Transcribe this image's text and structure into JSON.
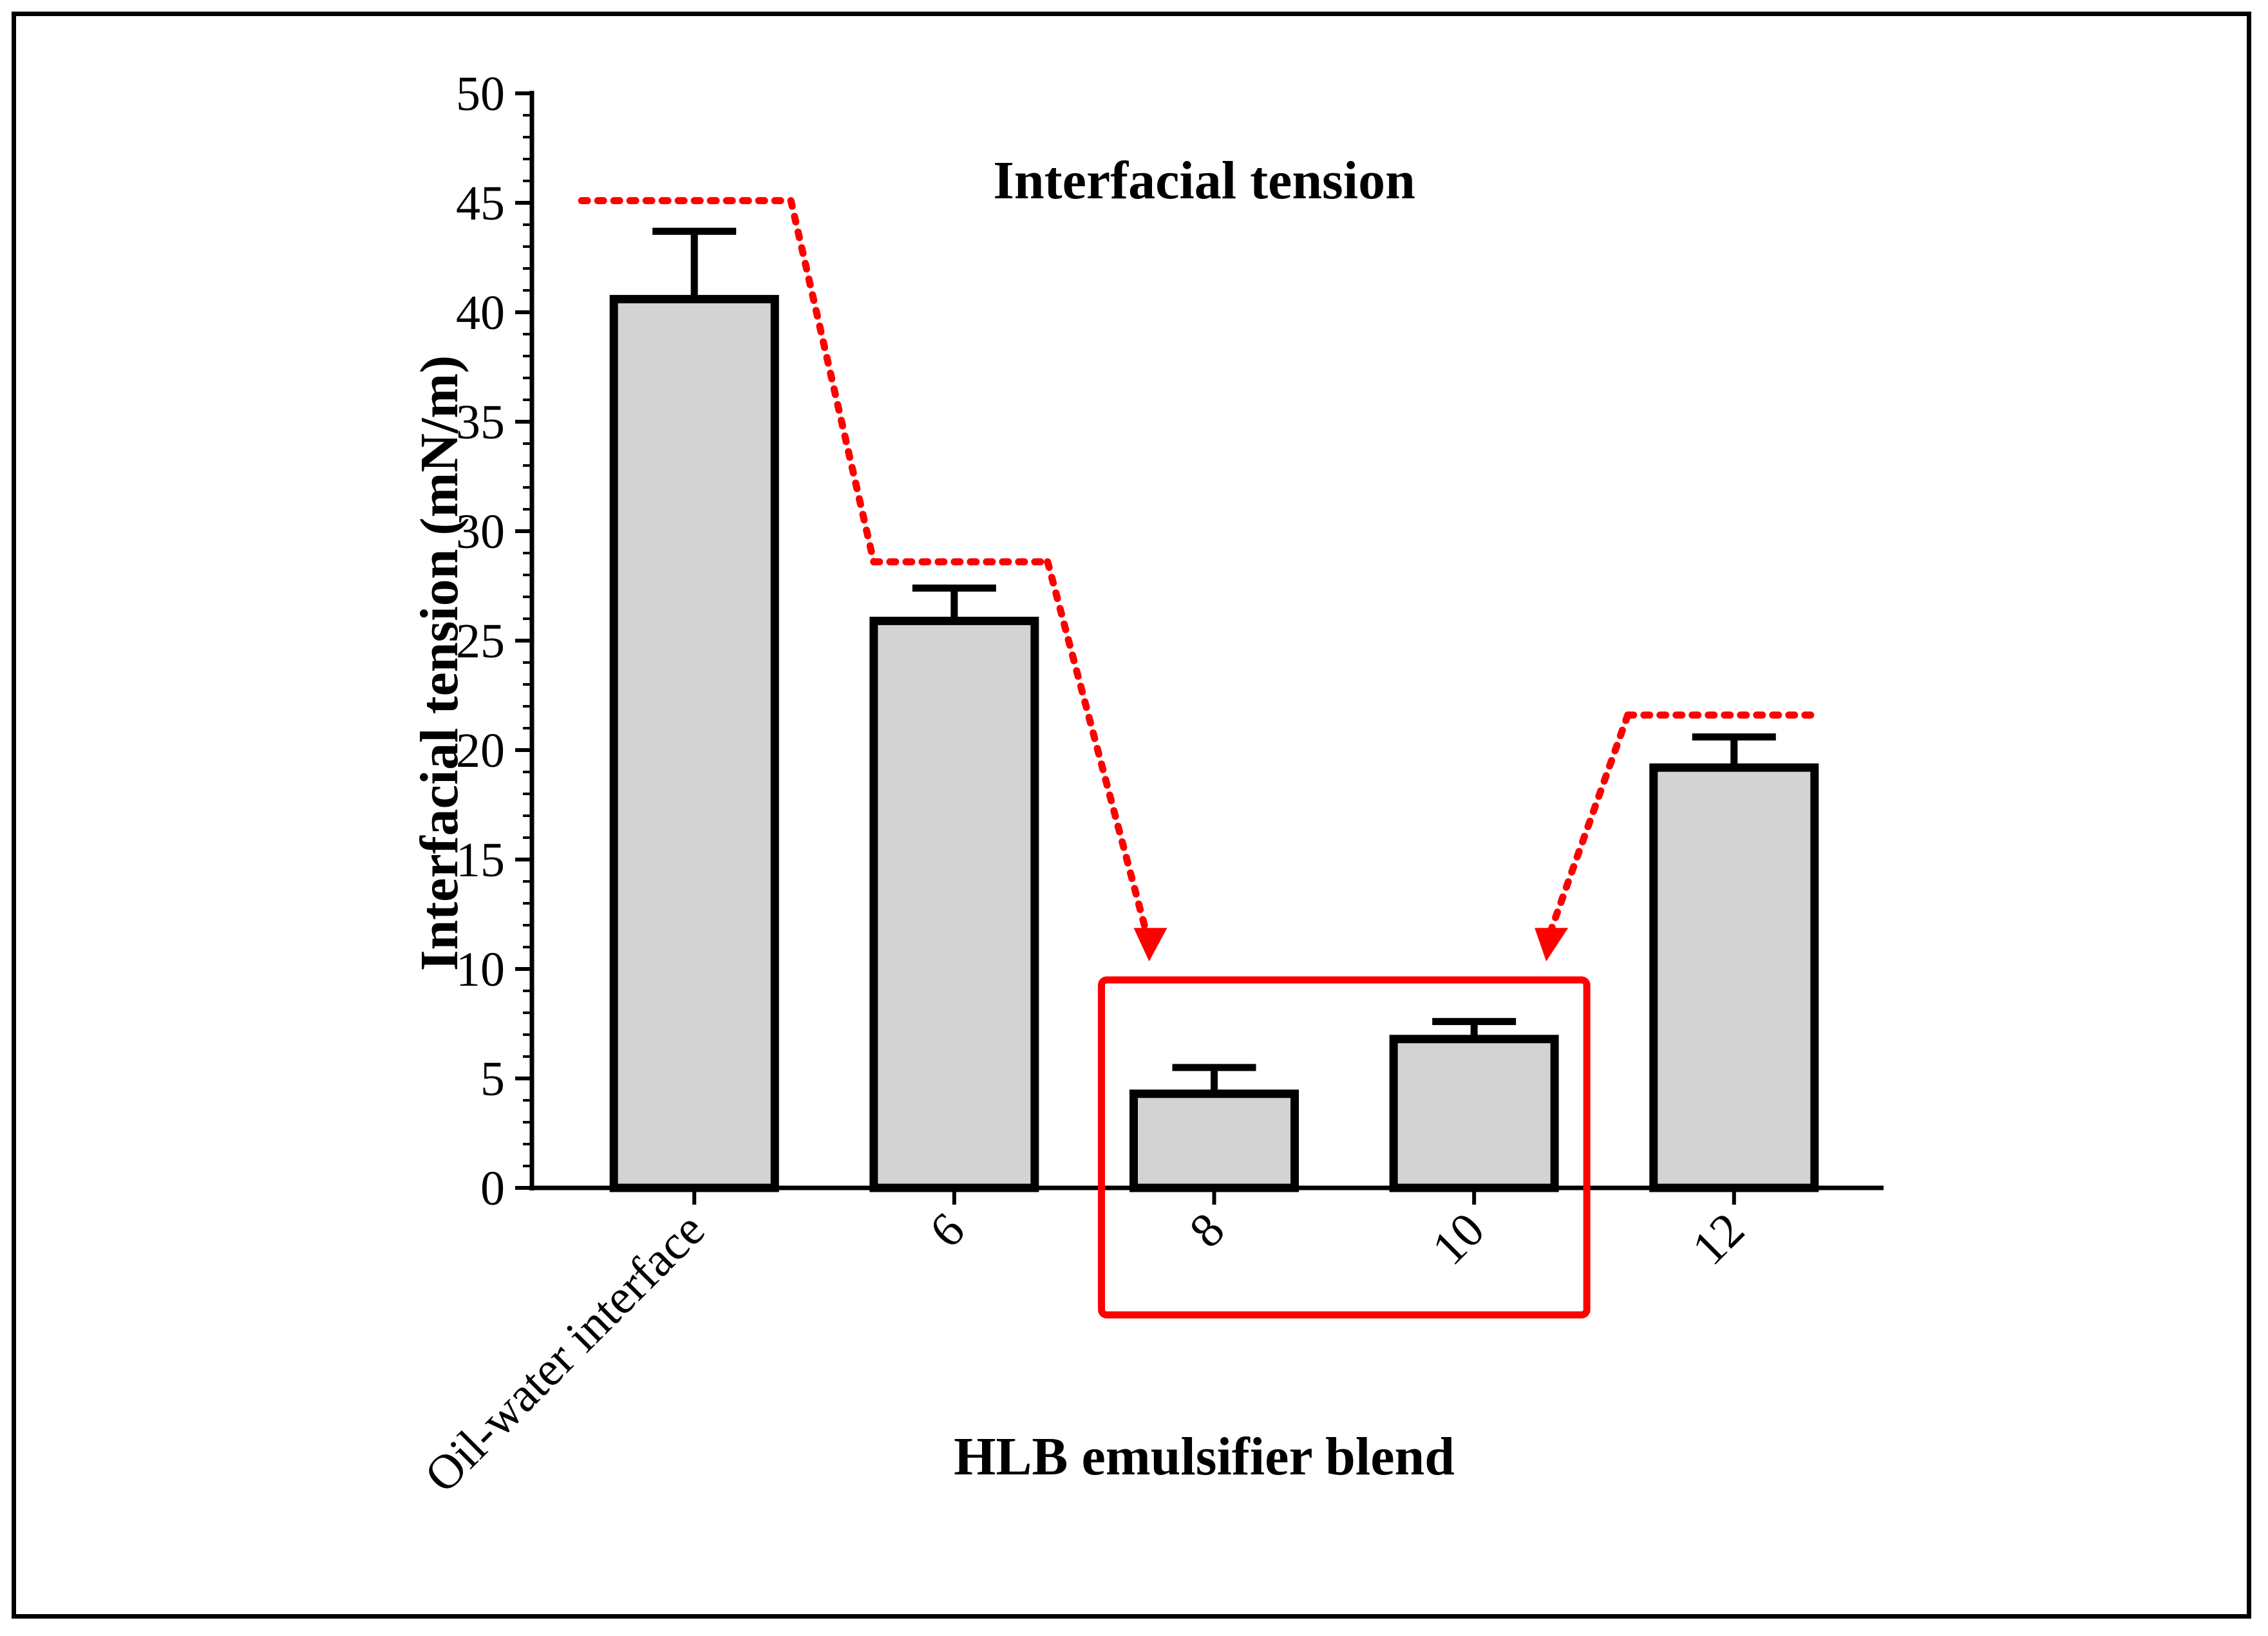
{
  "chart_data": {
    "type": "bar",
    "title": "Interfacial tension",
    "xlabel": "HLB emulsifier blend",
    "ylabel": "Interfacial tension (mN/m)",
    "ylim": [
      0,
      50
    ],
    "yticks": [
      "0",
      "5",
      "10",
      "15",
      "20",
      "25",
      "30",
      "35",
      "40",
      "45",
      "50"
    ],
    "categories": [
      "Oil-water interface",
      "6",
      "8",
      "10",
      "12"
    ],
    "values": [
      40.6,
      25.9,
      4.3,
      6.8,
      19.2
    ],
    "errors": [
      3.1,
      1.5,
      1.2,
      0.8,
      1.4
    ],
    "colors": {
      "bar_fill": "#d3d3d3",
      "bar_stroke": "#000000",
      "annotation": "#ff0000"
    },
    "annotations": {
      "highlight_box": {
        "categories": [
          "8",
          "10"
        ],
        "y_range": [
          -5.8,
          9.5
        ]
      },
      "trend_levels": [
        {
          "category": "Oil-water interface",
          "value": 45.1
        },
        {
          "category": "6",
          "value": 28.6
        },
        {
          "category": "12",
          "value": 21.6
        }
      ],
      "arrows": [
        {
          "from": "6",
          "to": "8",
          "to_value": 10.7
        },
        {
          "from": "12",
          "to": "10",
          "to_value": 10.7
        }
      ]
    }
  }
}
